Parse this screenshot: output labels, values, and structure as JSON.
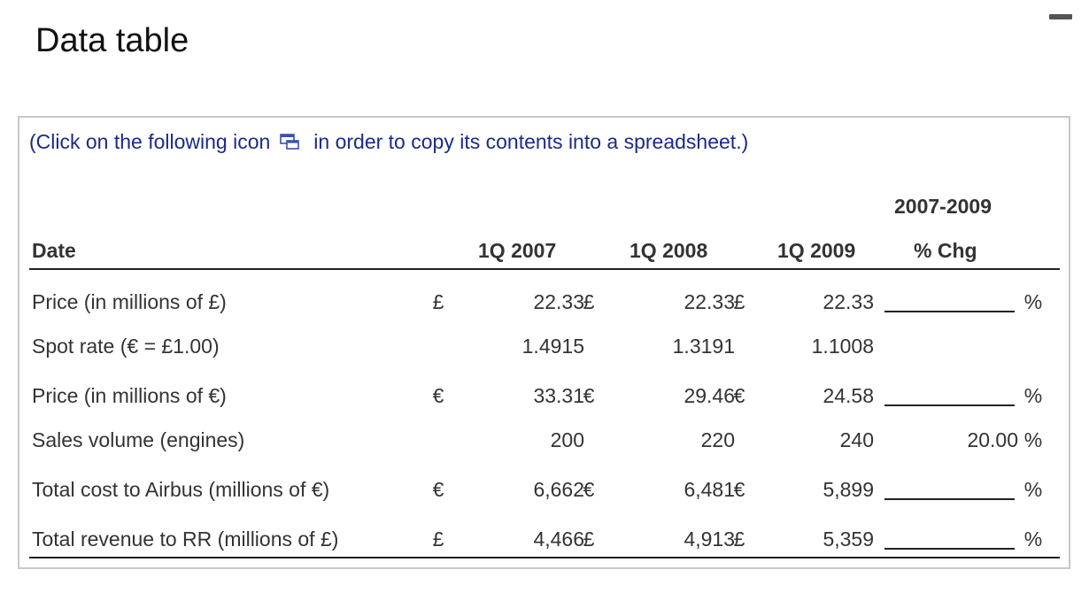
{
  "page": {
    "title": "Data table"
  },
  "instruction": {
    "before_icon": "(Click on the following icon",
    "after_icon": "in order to copy its contents into a spreadsheet.)",
    "icon": "copy-to-spreadsheet-icon"
  },
  "table": {
    "header": {
      "date": "Date",
      "col1": "1Q 2007",
      "col2": "1Q 2008",
      "col3": "1Q 2009",
      "change_line1": "2007-2009",
      "change_line2": "% Chg"
    },
    "rows": [
      {
        "label": "Price (in millions of £)",
        "currency": "£",
        "v1": "22.33",
        "c1": "£",
        "v2": "22.33",
        "c2": "£",
        "v3": "22.33",
        "change_input": true,
        "pct": "%"
      },
      {
        "label": "Spot rate (€ = £1.00)",
        "currency": "",
        "v1": "1.4915",
        "c1": "",
        "v2": "1.3191",
        "c2": "",
        "v3": "1.1008",
        "change_input": false,
        "pct": ""
      },
      {
        "label": "Price (in millions of €)",
        "currency": "€",
        "v1": "33.31",
        "c1": "€",
        "v2": "29.46",
        "c2": "€",
        "v3": "24.58",
        "change_input": true,
        "pct": "%"
      },
      {
        "label": "Sales volume (engines)",
        "currency": "",
        "v1": "200",
        "c1": "",
        "v2": "220",
        "c2": "",
        "v3": "240",
        "change_input": false,
        "change_value": "20.00",
        "pct": "%"
      },
      {
        "label": "Total cost to Airbus (millions of €)",
        "currency": "€",
        "v1": "6,662",
        "c1": "€",
        "v2": "6,481",
        "c2": "€",
        "v3": "5,899",
        "change_input": true,
        "pct": "%"
      },
      {
        "label": "Total revenue to RR (millions of £)",
        "currency": "£",
        "v1": "4,466",
        "c1": "£",
        "v2": "4,913",
        "c2": "£",
        "v3": "5,359",
        "change_input": true,
        "pct": "%"
      }
    ]
  },
  "colors": {
    "instruction_text": "#1a2a8c",
    "icon_blue": "#3b4fb0",
    "panel_border": "#c8c8c8"
  }
}
